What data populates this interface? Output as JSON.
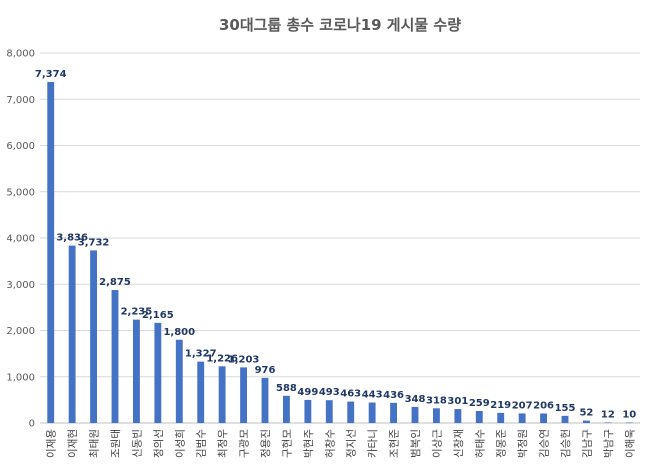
{
  "chart_data": {
    "type": "bar",
    "title": "30대그룹 총수 코로나19 게시물 수량",
    "xlabel": "",
    "ylabel": "",
    "ylim": [
      0,
      8000
    ],
    "yticks": [
      0,
      1000,
      2000,
      3000,
      4000,
      5000,
      6000,
      7000,
      8000
    ],
    "ytick_labels": [
      "0",
      "1,000",
      "2,000",
      "3,000",
      "4,000",
      "5,000",
      "6,000",
      "7,000",
      "8,000"
    ],
    "grid": true,
    "legend": "none",
    "bar_color": "#4472C4",
    "categories": [
      "이재용",
      "이재현",
      "최태원",
      "조원태",
      "신동빈",
      "정의선",
      "이성희",
      "김범수",
      "최정우",
      "구광모",
      "정용진",
      "구현모",
      "박현주",
      "허창수",
      "정지선",
      "카타니",
      "조현준",
      "범복인",
      "이상근",
      "신창재",
      "허태수",
      "정몽준",
      "박정원",
      "김승연",
      "김승헌",
      "김남구",
      "박남구",
      "이해욱"
    ],
    "values": [
      7374,
      3836,
      3732,
      2875,
      2235,
      2165,
      1800,
      1327,
      1226,
      1203,
      976,
      588,
      499,
      493,
      463,
      443,
      436,
      348,
      318,
      301,
      259,
      219,
      207,
      206,
      155,
      52,
      12,
      10
    ],
    "value_labels": [
      "7,374",
      "3,836",
      "3,732",
      "2,875",
      "2,235",
      "2,165",
      "1,800",
      "1,327",
      "1,226",
      "1,203",
      "976",
      "588",
      "499",
      "493",
      "463",
      "443",
      "436",
      "348",
      "318",
      "301",
      "259",
      "219",
      "207",
      "206",
      "155",
      "52",
      "12",
      "10"
    ]
  }
}
